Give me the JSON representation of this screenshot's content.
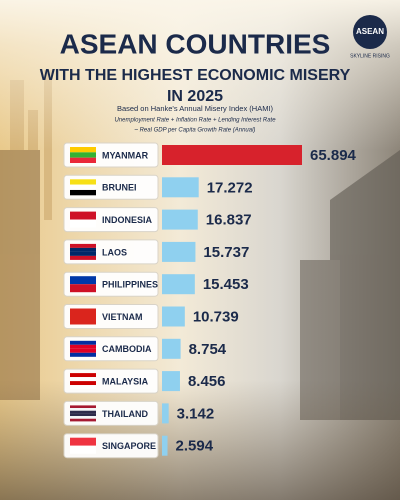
{
  "chart_data": {
    "type": "bar",
    "orientation": "horizontal",
    "title": "ASEAN COUNTRIES",
    "subtitle": [
      "WITH THE HIGHEST ECONOMIC MISERY",
      "IN 2025"
    ],
    "source_note": "Based on Hanke's Annual Misery Index (HAMI)",
    "formula": [
      "Unemployment Rate + Inflation Rate + Lending Interest Rate",
      "– Real GDP per Capita Growth Rate (Annual)"
    ],
    "logo": {
      "name": "ASEAN",
      "tagline": "SKYLINE RISING"
    },
    "categories": [
      "MYANMAR",
      "BRUNEI",
      "INDONESIA",
      "LAOS",
      "PHILIPPINES",
      "VIETNAM",
      "CAMBODIA",
      "MALAYSIA",
      "THAILAND",
      "SINGAPORE"
    ],
    "values": [
      65.894,
      17.272,
      16.837,
      15.737,
      15.453,
      10.739,
      8.754,
      8.456,
      3.142,
      2.594
    ],
    "colors": [
      "#d7222c",
      "#8fd0ef",
      "#8fd0ef",
      "#8fd0ef",
      "#8fd0ef",
      "#8fd0ef",
      "#8fd0ef",
      "#8fd0ef",
      "#8fd0ef",
      "#8fd0ef"
    ]
  }
}
